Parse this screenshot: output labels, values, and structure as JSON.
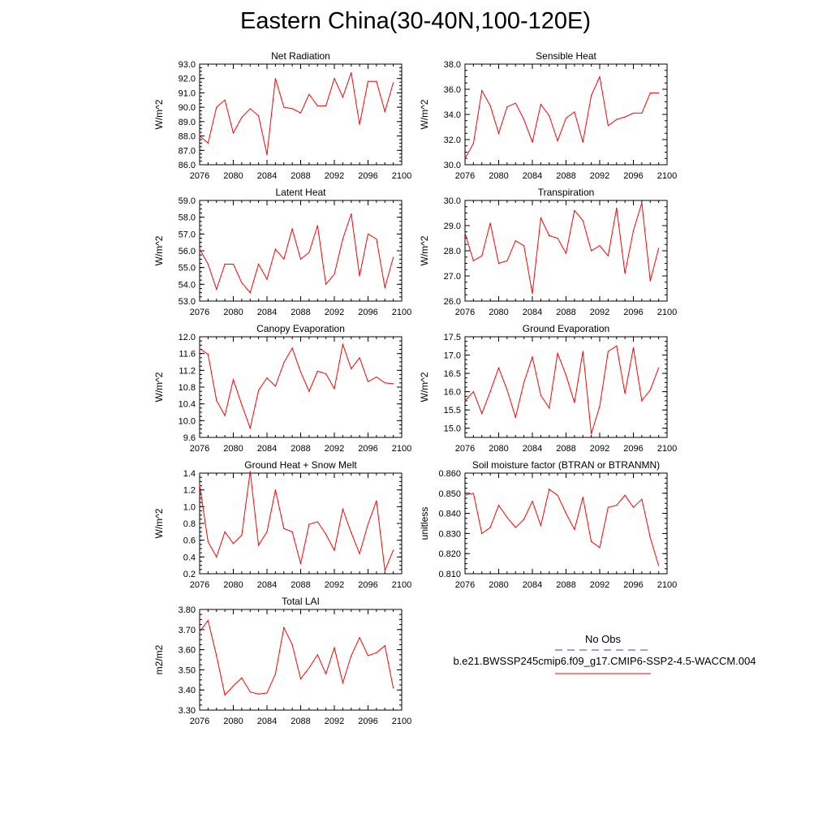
{
  "title": "Eastern China(30-40N,100-120E)",
  "colors": {
    "series": "#ff0000",
    "obs": "#3c3ccf",
    "axis": "#000000"
  },
  "legend": {
    "obs_label": "No Obs",
    "case_label": "b.e21.BWSSP245cmip6.f09_g17.CMIP6-SSP2-4.5-WACCM.004"
  },
  "chart_data": [
    {
      "type": "line",
      "title": "Net Radiation",
      "xlabel": "",
      "ylabel": "W/m^2",
      "xlim": [
        2076,
        2100
      ],
      "ylim": [
        86.0,
        93.0
      ],
      "xticks": [
        2076,
        2080,
        2084,
        2088,
        2092,
        2096,
        2100
      ],
      "yticks": [
        86.0,
        87.0,
        88.0,
        89.0,
        90.0,
        91.0,
        92.0,
        93.0
      ],
      "ydecimals": 1,
      "series": [
        {
          "x": [
            2076,
            2077,
            2078,
            2079,
            2080,
            2081,
            2082,
            2083,
            2084,
            2085,
            2086,
            2087,
            2088,
            2089,
            2090,
            2091,
            2092,
            2093,
            2094,
            2095,
            2096,
            2097,
            2098,
            2099
          ],
          "values": [
            88.0,
            87.5,
            90.0,
            90.5,
            88.2,
            89.3,
            89.9,
            89.4,
            86.7,
            92.0,
            90.0,
            89.9,
            89.6,
            90.9,
            90.1,
            90.1,
            92.0,
            90.7,
            92.4,
            88.8,
            91.8,
            91.8,
            89.7,
            91.7
          ]
        }
      ]
    },
    {
      "type": "line",
      "title": "Sensible Heat",
      "xlabel": "",
      "ylabel": "W/m^2",
      "xlim": [
        2076,
        2100
      ],
      "ylim": [
        30.0,
        38.0
      ],
      "xticks": [
        2076,
        2080,
        2084,
        2088,
        2092,
        2096,
        2100
      ],
      "yticks": [
        30.0,
        32.0,
        34.0,
        36.0,
        38.0
      ],
      "ydecimals": 1,
      "series": [
        {
          "x": [
            2076,
            2077,
            2078,
            2079,
            2080,
            2081,
            2082,
            2083,
            2084,
            2085,
            2086,
            2087,
            2088,
            2089,
            2090,
            2091,
            2092,
            2093,
            2094,
            2095,
            2096,
            2097,
            2098,
            2099
          ],
          "values": [
            30.5,
            31.7,
            35.9,
            34.7,
            32.5,
            34.6,
            34.9,
            33.6,
            31.8,
            34.8,
            33.9,
            31.9,
            33.7,
            34.2,
            31.8,
            35.5,
            37.0,
            33.1,
            33.6,
            33.8,
            34.1,
            34.1,
            35.7,
            35.7
          ]
        }
      ]
    },
    {
      "type": "line",
      "title": "Latent Heat",
      "xlabel": "",
      "ylabel": "W/m^2",
      "xlim": [
        2076,
        2100
      ],
      "ylim": [
        53.0,
        59.0
      ],
      "xticks": [
        2076,
        2080,
        2084,
        2088,
        2092,
        2096,
        2100
      ],
      "yticks": [
        53.0,
        54.0,
        55.0,
        56.0,
        57.0,
        58.0,
        59.0
      ],
      "ydecimals": 1,
      "series": [
        {
          "x": [
            2076,
            2077,
            2078,
            2079,
            2080,
            2081,
            2082,
            2083,
            2084,
            2085,
            2086,
            2087,
            2088,
            2089,
            2090,
            2091,
            2092,
            2093,
            2094,
            2095,
            2096,
            2097,
            2098,
            2099
          ],
          "values": [
            56.1,
            55.2,
            53.7,
            55.2,
            55.2,
            54.1,
            53.5,
            55.2,
            54.3,
            56.1,
            55.5,
            57.3,
            55.5,
            55.9,
            57.5,
            54.0,
            54.6,
            56.7,
            58.2,
            54.5,
            57.0,
            56.7,
            53.8,
            55.6
          ]
        }
      ]
    },
    {
      "type": "line",
      "title": "Transpiration",
      "xlabel": "",
      "ylabel": "W/m^2",
      "xlim": [
        2076,
        2100
      ],
      "ylim": [
        26.0,
        30.0
      ],
      "xticks": [
        2076,
        2080,
        2084,
        2088,
        2092,
        2096,
        2100
      ],
      "yticks": [
        26.0,
        27.0,
        28.0,
        29.0,
        30.0
      ],
      "ydecimals": 1,
      "series": [
        {
          "x": [
            2076,
            2077,
            2078,
            2079,
            2080,
            2081,
            2082,
            2083,
            2084,
            2085,
            2086,
            2087,
            2088,
            2089,
            2090,
            2091,
            2092,
            2093,
            2094,
            2095,
            2096,
            2097,
            2098,
            2099
          ],
          "values": [
            28.7,
            27.6,
            27.8,
            29.1,
            27.5,
            27.6,
            28.4,
            28.2,
            26.3,
            29.3,
            28.6,
            28.5,
            27.9,
            29.6,
            29.2,
            28.0,
            28.2,
            27.8,
            29.7,
            27.1,
            28.8,
            29.9,
            26.8,
            28.1
          ]
        }
      ]
    },
    {
      "type": "line",
      "title": "Canopy Evaporation",
      "xlabel": "",
      "ylabel": "W/m^2",
      "xlim": [
        2076,
        2100
      ],
      "ylim": [
        9.6,
        12.0
      ],
      "xticks": [
        2076,
        2080,
        2084,
        2088,
        2092,
        2096,
        2100
      ],
      "yticks": [
        9.6,
        10.0,
        10.4,
        10.8,
        11.2,
        11.6,
        12.0
      ],
      "ydecimals": 1,
      "series": [
        {
          "x": [
            2076,
            2077,
            2078,
            2079,
            2080,
            2081,
            2082,
            2083,
            2084,
            2085,
            2086,
            2087,
            2088,
            2089,
            2090,
            2091,
            2092,
            2093,
            2094,
            2095,
            2096,
            2097,
            2098,
            2099
          ],
          "values": [
            11.72,
            11.58,
            10.48,
            10.12,
            10.98,
            10.38,
            9.82,
            10.72,
            11.02,
            10.82,
            11.38,
            11.73,
            11.16,
            10.7,
            11.18,
            11.12,
            10.76,
            11.82,
            11.24,
            11.5,
            10.93,
            11.04,
            10.9,
            10.88
          ]
        }
      ]
    },
    {
      "type": "line",
      "title": "Ground Evaporation",
      "xlabel": "",
      "ylabel": "W/m^2",
      "xlim": [
        2076,
        2100
      ],
      "ylim": [
        14.75,
        17.5
      ],
      "xticks": [
        2076,
        2080,
        2084,
        2088,
        2092,
        2096,
        2100
      ],
      "yticks": [
        15.0,
        15.5,
        16.0,
        16.5,
        17.0,
        17.5
      ],
      "ydecimals": 1,
      "series": [
        {
          "x": [
            2076,
            2077,
            2078,
            2079,
            2080,
            2081,
            2082,
            2083,
            2084,
            2085,
            2086,
            2087,
            2088,
            2089,
            2090,
            2091,
            2092,
            2093,
            2094,
            2095,
            2096,
            2097,
            2098,
            2099
          ],
          "values": [
            15.75,
            16.0,
            15.4,
            16.0,
            16.65,
            16.05,
            15.3,
            16.25,
            16.95,
            15.9,
            15.55,
            17.05,
            16.45,
            15.7,
            17.1,
            14.85,
            15.6,
            17.1,
            17.25,
            15.95,
            17.2,
            15.75,
            16.05,
            16.65
          ]
        }
      ]
    },
    {
      "type": "line",
      "title": "Ground Heat + Snow Melt",
      "xlabel": "",
      "ylabel": "W/m^2",
      "xlim": [
        2076,
        2100
      ],
      "ylim": [
        0.2,
        1.4
      ],
      "xticks": [
        2076,
        2080,
        2084,
        2088,
        2092,
        2096,
        2100
      ],
      "yticks": [
        0.2,
        0.4,
        0.6,
        0.8,
        1.0,
        1.2,
        1.4
      ],
      "ydecimals": 1,
      "series": [
        {
          "x": [
            2076,
            2077,
            2078,
            2079,
            2080,
            2081,
            2082,
            2083,
            2084,
            2085,
            2086,
            2087,
            2088,
            2089,
            2090,
            2091,
            2092,
            2093,
            2094,
            2095,
            2096,
            2097,
            2098,
            2099
          ],
          "values": [
            1.26,
            0.58,
            0.4,
            0.7,
            0.56,
            0.66,
            1.42,
            0.54,
            0.7,
            1.2,
            0.74,
            0.7,
            0.32,
            0.79,
            0.82,
            0.67,
            0.48,
            0.97,
            0.69,
            0.44,
            0.79,
            1.07,
            0.24,
            0.48
          ]
        }
      ]
    },
    {
      "type": "line",
      "title": "Soil moisture factor (BTRAN or BTRANMN)",
      "xlabel": "",
      "ylabel": "unitless",
      "xlim": [
        2076,
        2100
      ],
      "ylim": [
        0.81,
        0.86
      ],
      "xticks": [
        2076,
        2080,
        2084,
        2088,
        2092,
        2096,
        2100
      ],
      "yticks": [
        0.81,
        0.82,
        0.83,
        0.84,
        0.85,
        0.86
      ],
      "ydecimals": 3,
      "series": [
        {
          "x": [
            2076,
            2077,
            2078,
            2079,
            2080,
            2081,
            2082,
            2083,
            2084,
            2085,
            2086,
            2087,
            2088,
            2089,
            2090,
            2091,
            2092,
            2093,
            2094,
            2095,
            2096,
            2097,
            2098,
            2099
          ],
          "values": [
            0.849,
            0.85,
            0.83,
            0.833,
            0.844,
            0.838,
            0.833,
            0.837,
            0.846,
            0.834,
            0.852,
            0.849,
            0.84,
            0.832,
            0.848,
            0.826,
            0.823,
            0.843,
            0.844,
            0.849,
            0.843,
            0.847,
            0.828,
            0.814
          ]
        }
      ]
    },
    {
      "type": "line",
      "title": "Total LAI",
      "xlabel": "",
      "ylabel": "m2/m2",
      "xlim": [
        2076,
        2100
      ],
      "ylim": [
        3.3,
        3.8
      ],
      "xticks": [
        2076,
        2080,
        2084,
        2088,
        2092,
        2096,
        2100
      ],
      "yticks": [
        3.3,
        3.4,
        3.5,
        3.6,
        3.7,
        3.8
      ],
      "ydecimals": 2,
      "series": [
        {
          "x": [
            2076,
            2077,
            2078,
            2079,
            2080,
            2081,
            2082,
            2083,
            2084,
            2085,
            2086,
            2087,
            2088,
            2089,
            2090,
            2091,
            2092,
            2093,
            2094,
            2095,
            2096,
            2097,
            2098,
            2099
          ],
          "values": [
            3.69,
            3.745,
            3.57,
            3.375,
            3.42,
            3.46,
            3.39,
            3.38,
            3.385,
            3.48,
            3.71,
            3.625,
            3.455,
            3.51,
            3.575,
            3.48,
            3.61,
            3.435,
            3.57,
            3.66,
            3.57,
            3.585,
            3.62,
            3.41
          ]
        }
      ]
    }
  ]
}
